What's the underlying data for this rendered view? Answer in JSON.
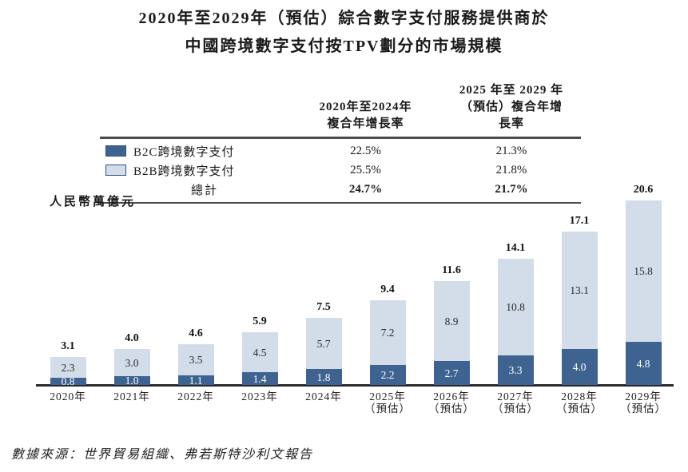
{
  "title": {
    "line1": "2020年至2029年（預估）綜合數字支付服務提供商於",
    "line2": "中國跨境數字支付按TPV劃分的市場規模"
  },
  "table": {
    "headers": [
      {
        "line1": "2020年至2024年",
        "line2": "複合年增長率"
      },
      {
        "line1": "2025 年至 2029 年",
        "line2": "（預估）複合年增長率"
      }
    ],
    "rows": [
      {
        "label": "B2C跨境數字支付",
        "cagr_2020_2024": "22.5%",
        "cagr_2025_2029": "21.3%"
      },
      {
        "label": "B2B跨境數字支付",
        "cagr_2020_2024": "25.5%",
        "cagr_2025_2029": "21.8%"
      },
      {
        "label": "總計",
        "cagr_2020_2024": "24.7%",
        "cagr_2025_2029": "21.7%"
      }
    ]
  },
  "colors": {
    "b2c": "#3F6390",
    "b2b": "#D2DDE9",
    "swatch_border": "#2F4F79",
    "axis": "#2B2B2B"
  },
  "chart_data": {
    "type": "bar",
    "stacked": true,
    "title": "2020年至2029年（預估）綜合數字支付服務提供商於中國跨境數字支付按TPV劃分的市場規模",
    "ylabel": "人民幣萬億元",
    "ylim": [
      0,
      21
    ],
    "grid": false,
    "legend_position": "table-top-left",
    "categories": [
      {
        "year": "2020年",
        "note": ""
      },
      {
        "year": "2021年",
        "note": ""
      },
      {
        "year": "2022年",
        "note": ""
      },
      {
        "year": "2023年",
        "note": ""
      },
      {
        "year": "2024年",
        "note": ""
      },
      {
        "year": "2025年",
        "note": "（預估）"
      },
      {
        "year": "2026年",
        "note": "（預估）"
      },
      {
        "year": "2027年",
        "note": "（預估）"
      },
      {
        "year": "2028年",
        "note": "（預估）"
      },
      {
        "year": "2029年",
        "note": "（預估）"
      }
    ],
    "series": [
      {
        "name": "B2C跨境數字支付",
        "color": "#3F6390",
        "values": [
          0.8,
          1.0,
          1.1,
          1.4,
          1.8,
          2.2,
          2.7,
          3.3,
          4.0,
          4.8
        ]
      },
      {
        "name": "B2B跨境數字支付",
        "color": "#D2DDE9",
        "values": [
          2.3,
          3.0,
          3.5,
          4.5,
          5.7,
          7.2,
          8.9,
          10.8,
          13.1,
          15.8
        ]
      }
    ],
    "totals": [
      3.1,
      4.0,
      4.6,
      5.9,
      7.5,
      9.4,
      11.6,
      14.1,
      17.1,
      20.6
    ]
  },
  "source": "數據來源：世界貿易組織、弗若斯特沙利文報告"
}
